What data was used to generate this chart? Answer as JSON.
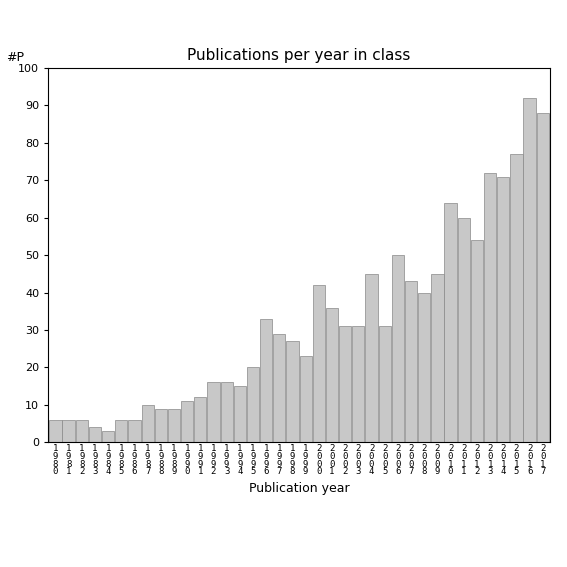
{
  "title": "Publications per year in class",
  "xlabel": "Publication year",
  "ylabel": "#P",
  "ylim": [
    0,
    100
  ],
  "yticks": [
    0,
    10,
    20,
    30,
    40,
    50,
    60,
    70,
    80,
    90,
    100
  ],
  "bar_color": "#c8c8c8",
  "bar_edgecolor": "#888888",
  "years": [
    "1980",
    "1981",
    "1982",
    "1983",
    "1984",
    "1985",
    "1986",
    "1987",
    "1988",
    "1989",
    "1990",
    "1991",
    "1992",
    "1993",
    "1994",
    "1995",
    "1996",
    "1997",
    "1998",
    "1999",
    "2000",
    "2001",
    "2002",
    "2003",
    "2004",
    "2005",
    "2006",
    "2007",
    "2008",
    "2009",
    "2010",
    "2011",
    "2012",
    "2013",
    "2014",
    "2015",
    "2016",
    "2017"
  ],
  "values": [
    6,
    6,
    6,
    4,
    3,
    6,
    6,
    10,
    9,
    9,
    11,
    12,
    16,
    16,
    15,
    20,
    33,
    29,
    27,
    23,
    42,
    36,
    31,
    31,
    45,
    31,
    50,
    43,
    40,
    45,
    64,
    60,
    54,
    72,
    71,
    77,
    92,
    88
  ],
  "background_color": "#ffffff",
  "title_fontsize": 11,
  "axis_label_fontsize": 9,
  "tick_fontsize": 8,
  "xtick_fontsize": 6.5
}
